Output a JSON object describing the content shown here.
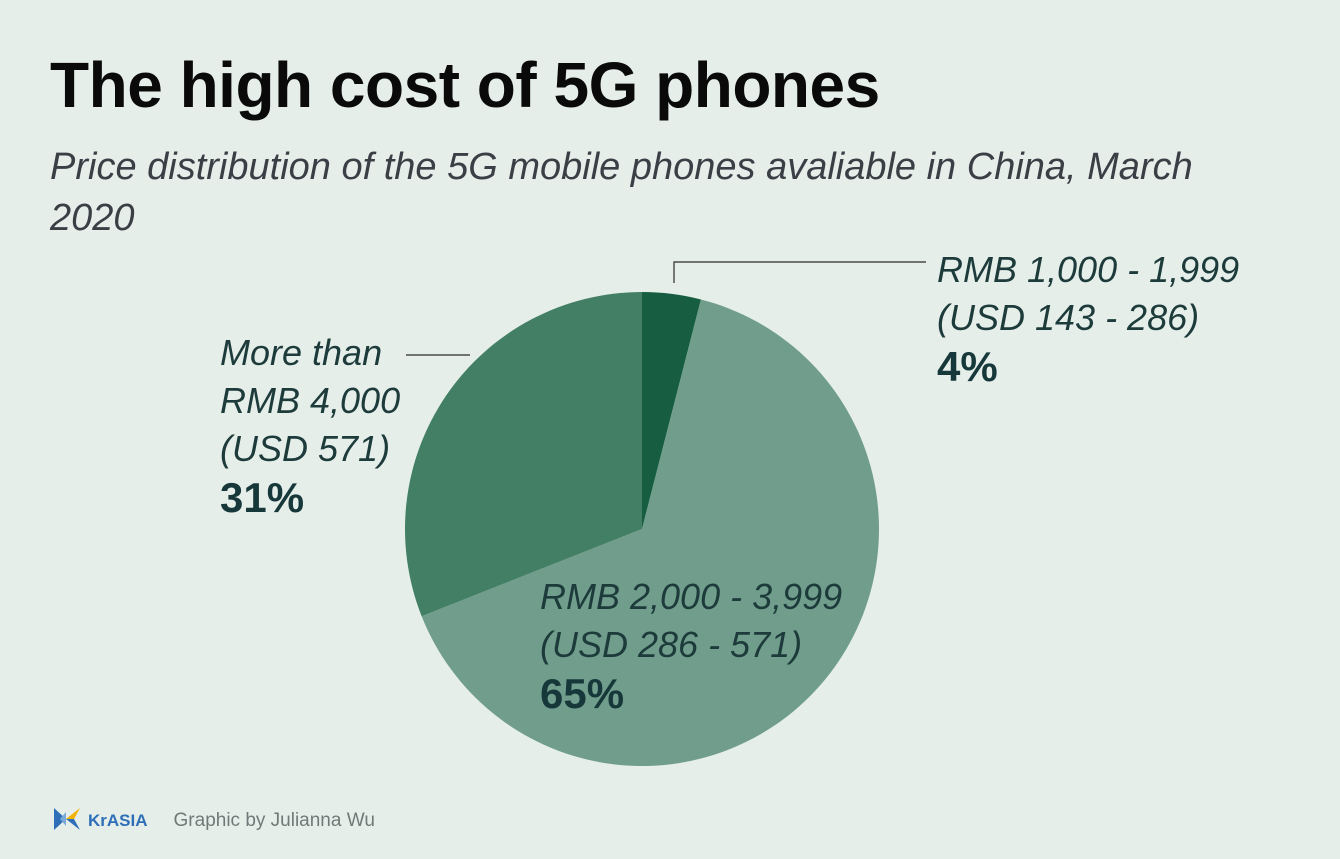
{
  "chart_data": {
    "type": "pie",
    "title": "The high cost of 5G phones",
    "subtitle": "Price distribution of the 5G mobile phones avaliable in China, March 2020",
    "slices": [
      {
        "label_line1": "RMB 1,000 - 1,999",
        "label_line2": "(USD 143 - 286)",
        "value": 4,
        "value_label": "4%",
        "color": "#165d42"
      },
      {
        "label_line1": "RMB 2,000 - 3,999",
        "label_line2": "(USD 286 - 571)",
        "value": 65,
        "value_label": "65%",
        "color": "#719e8c"
      },
      {
        "label_line1": "More than",
        "label_line2": "RMB 4,000",
        "label_line3": "(USD 571)",
        "value": 31,
        "value_label": "31%",
        "color": "#437f65"
      }
    ],
    "start": "12 o'clock",
    "direction": "clockwise"
  },
  "footer": {
    "logo_text": "KrASIA",
    "logo_icon": "krasia-logo-icon",
    "credit": "Graphic by Julianna Wu"
  }
}
